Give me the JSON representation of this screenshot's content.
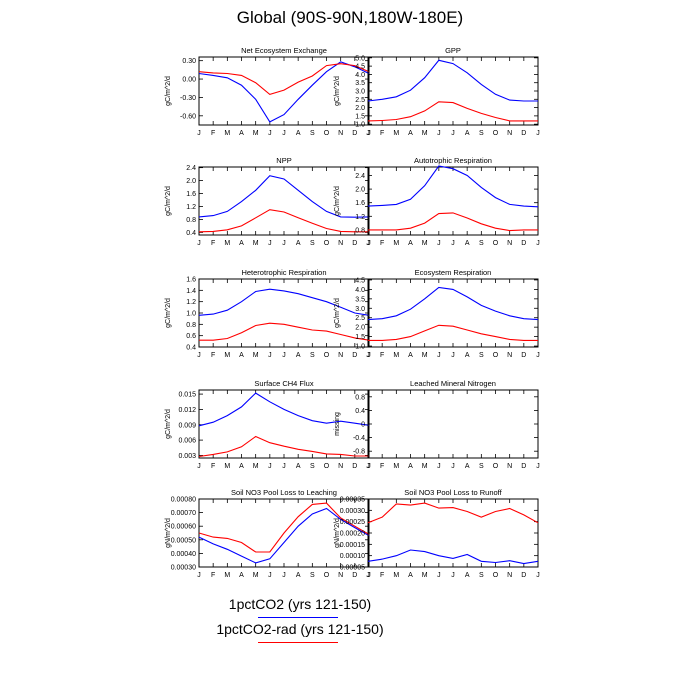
{
  "page_title": "Global (90S-90N,180W-180E)",
  "legend": {
    "items": [
      {
        "label": "1pctCO2 (yrs 121-150)",
        "color": "#0000ff"
      },
      {
        "label": "1pctCO2-rad (yrs 121-150)",
        "color": "#ff0000"
      }
    ]
  },
  "chart_data": [
    {
      "type": "line",
      "title": "Net Ecosystem Exchange",
      "ylabel": "gC/m^2/d",
      "categories": [
        "J",
        "F",
        "M",
        "A",
        "M",
        "J",
        "J",
        "A",
        "S",
        "O",
        "N",
        "D",
        "J"
      ],
      "ylim": [
        -0.75,
        0.36
      ],
      "yticks": [
        0.3,
        0.0,
        -0.3,
        -0.6
      ],
      "ytick_labels": [
        "0.30",
        "0.00",
        "-0.30",
        "-0.60"
      ],
      "series": [
        {
          "color": "#0000ff",
          "values": [
            0.09,
            0.06,
            0.02,
            -0.1,
            -0.33,
            -0.7,
            -0.58,
            -0.33,
            -0.1,
            0.12,
            0.28,
            0.2,
            0.09
          ]
        },
        {
          "color": "#ff0000",
          "values": [
            0.12,
            0.1,
            0.09,
            0.06,
            -0.06,
            -0.25,
            -0.18,
            -0.05,
            0.05,
            0.22,
            0.25,
            0.22,
            0.12
          ]
        }
      ]
    },
    {
      "type": "line",
      "title": "GPP",
      "ylabel": "gC/m^2/d",
      "categories": [
        "J",
        "F",
        "M",
        "A",
        "M",
        "J",
        "J",
        "A",
        "S",
        "O",
        "N",
        "D",
        "J"
      ],
      "ylim": [
        0.95,
        5.05
      ],
      "yticks": [
        1.0,
        1.5,
        2.0,
        2.5,
        3.0,
        3.5,
        4.0,
        4.5,
        5.0
      ],
      "ytick_labels": [
        "1.0",
        "1.5",
        "2.0",
        "2.5",
        "3.0",
        "3.5",
        "4.0",
        "4.5",
        "5.0"
      ],
      "series": [
        {
          "color": "#0000ff",
          "values": [
            2.4,
            2.5,
            2.65,
            3.05,
            3.8,
            4.85,
            4.65,
            4.1,
            3.4,
            2.8,
            2.45,
            2.4,
            2.4
          ]
        },
        {
          "color": "#ff0000",
          "values": [
            1.2,
            1.22,
            1.28,
            1.45,
            1.8,
            2.35,
            2.3,
            1.95,
            1.65,
            1.4,
            1.2,
            1.2,
            1.2
          ]
        }
      ]
    },
    {
      "type": "line",
      "title": "NPP",
      "ylabel": "gC/m^2/d",
      "categories": [
        "J",
        "F",
        "M",
        "A",
        "M",
        "J",
        "J",
        "A",
        "S",
        "O",
        "N",
        "D",
        "J"
      ],
      "ylim": [
        0.32,
        2.42
      ],
      "yticks": [
        0.4,
        0.8,
        1.2,
        1.6,
        2.0,
        2.4
      ],
      "ytick_labels": [
        "0.4",
        "0.8",
        "1.2",
        "1.6",
        "2.0",
        "2.4"
      ],
      "series": [
        {
          "color": "#0000ff",
          "values": [
            0.88,
            0.92,
            1.05,
            1.35,
            1.7,
            2.15,
            2.05,
            1.7,
            1.35,
            1.05,
            0.88,
            0.87,
            0.88
          ]
        },
        {
          "color": "#ff0000",
          "values": [
            0.42,
            0.43,
            0.48,
            0.6,
            0.85,
            1.1,
            1.03,
            0.85,
            0.68,
            0.52,
            0.43,
            0.42,
            0.42
          ]
        }
      ]
    },
    {
      "type": "line",
      "title": "Autotrophic Respiration",
      "ylabel": "gC/m^2/d",
      "categories": [
        "J",
        "F",
        "M",
        "A",
        "M",
        "J",
        "J",
        "A",
        "S",
        "O",
        "N",
        "D",
        "J"
      ],
      "ylim": [
        0.65,
        2.65
      ],
      "yticks": [
        0.8,
        1.2,
        1.6,
        2.0,
        2.4
      ],
      "ytick_labels": [
        "0.8",
        "1.2",
        "1.6",
        "2.0",
        "2.4"
      ],
      "series": [
        {
          "color": "#0000ff",
          "values": [
            1.5,
            1.52,
            1.55,
            1.7,
            2.1,
            2.68,
            2.6,
            2.4,
            2.05,
            1.75,
            1.55,
            1.5,
            1.48
          ]
        },
        {
          "color": "#ff0000",
          "values": [
            0.8,
            0.8,
            0.8,
            0.85,
            1.0,
            1.28,
            1.3,
            1.15,
            0.98,
            0.85,
            0.78,
            0.8,
            0.8
          ]
        }
      ]
    },
    {
      "type": "line",
      "title": "Heterotrophic Respiration",
      "ylabel": "gC/m^2/d",
      "categories": [
        "J",
        "F",
        "M",
        "A",
        "M",
        "J",
        "J",
        "A",
        "S",
        "O",
        "N",
        "D",
        "J"
      ],
      "ylim": [
        0.4,
        1.6
      ],
      "yticks": [
        0.4,
        0.6,
        0.8,
        1.0,
        1.2,
        1.4,
        1.6
      ],
      "ytick_labels": [
        "0.4",
        "0.6",
        "0.8",
        "1.0",
        "1.2",
        "1.4",
        "1.6"
      ],
      "series": [
        {
          "color": "#0000ff",
          "values": [
            0.96,
            0.98,
            1.05,
            1.2,
            1.38,
            1.42,
            1.39,
            1.34,
            1.27,
            1.2,
            1.1,
            1.0,
            0.96
          ]
        },
        {
          "color": "#ff0000",
          "values": [
            0.52,
            0.52,
            0.55,
            0.65,
            0.78,
            0.82,
            0.8,
            0.75,
            0.7,
            0.68,
            0.62,
            0.56,
            0.52
          ]
        }
      ]
    },
    {
      "type": "line",
      "title": "Ecosystem Respiration",
      "ylabel": "gC/m^2/d",
      "categories": [
        "J",
        "F",
        "M",
        "A",
        "M",
        "J",
        "J",
        "A",
        "S",
        "O",
        "N",
        "D",
        "J"
      ],
      "ylim": [
        0.95,
        4.55
      ],
      "yticks": [
        1.0,
        1.5,
        2.0,
        2.5,
        3.0,
        3.5,
        4.0,
        4.5
      ],
      "ytick_labels": [
        "1.0",
        "1.5",
        "2.0",
        "2.5",
        "3.0",
        "3.5",
        "4.0",
        "4.5"
      ],
      "series": [
        {
          "color": "#0000ff",
          "values": [
            2.4,
            2.45,
            2.6,
            2.95,
            3.5,
            4.1,
            4.0,
            3.6,
            3.15,
            2.85,
            2.6,
            2.45,
            2.4
          ]
        },
        {
          "color": "#ff0000",
          "values": [
            1.3,
            1.3,
            1.35,
            1.5,
            1.8,
            2.1,
            2.05,
            1.85,
            1.65,
            1.5,
            1.35,
            1.3,
            1.3
          ]
        }
      ]
    },
    {
      "type": "line",
      "title": "Surface CH4 Flux",
      "ylabel": "gC/m^2/d",
      "categories": [
        "J",
        "F",
        "M",
        "A",
        "M",
        "J",
        "J",
        "A",
        "S",
        "O",
        "N",
        "D",
        "J"
      ],
      "ylim": [
        0.0025,
        0.0158
      ],
      "yticks": [
        0.003,
        0.006,
        0.009,
        0.012,
        0.015
      ],
      "ytick_labels": [
        "0.003",
        "0.006",
        "0.009",
        "0.012",
        "0.015"
      ],
      "series": [
        {
          "color": "#0000ff",
          "values": [
            0.0088,
            0.0095,
            0.0108,
            0.0125,
            0.0152,
            0.0135,
            0.012,
            0.0108,
            0.0098,
            0.0093,
            0.0097,
            0.0093,
            0.0089
          ]
        },
        {
          "color": "#ff0000",
          "values": [
            0.0028,
            0.0032,
            0.0037,
            0.0047,
            0.0067,
            0.0055,
            0.0048,
            0.0042,
            0.0038,
            0.0033,
            0.0032,
            0.0029,
            0.0029
          ]
        }
      ]
    },
    {
      "type": "line",
      "title": "Leached Mineral Nitrogen",
      "ylabel": "missing",
      "categories": [
        "J",
        "F",
        "M",
        "A",
        "M",
        "J",
        "J",
        "A",
        "S",
        "O",
        "N",
        "D",
        "J"
      ],
      "ylim": [
        -1.0,
        1.0
      ],
      "yticks": [
        0.8,
        0.4,
        0.0,
        -0.4,
        -0.8
      ],
      "ytick_labels": [
        "0.8",
        "0.4",
        "0",
        "-0.4",
        "-0.8"
      ],
      "series": []
    },
    {
      "type": "line",
      "title": "Soil NO3 Pool Loss to Leaching",
      "ylabel": "gN/m^2/d",
      "categories": [
        "J",
        "F",
        "M",
        "A",
        "M",
        "J",
        "J",
        "A",
        "S",
        "O",
        "N",
        "D",
        "J"
      ],
      "ylim": [
        0.0003,
        0.0008
      ],
      "yticks": [
        0.0003,
        0.0004,
        0.0005,
        0.0006,
        0.0007,
        0.0008
      ],
      "ytick_labels": [
        "0.00030",
        "0.00040",
        "0.00050",
        "0.00060",
        "0.00070",
        "0.00080"
      ],
      "series": [
        {
          "color": "#0000ff",
          "values": [
            0.00052,
            0.00047,
            0.00043,
            0.00038,
            0.00033,
            0.00036,
            0.00048,
            0.0006,
            0.00069,
            0.00073,
            0.00065,
            0.00059,
            0.00053
          ]
        },
        {
          "color": "#ff0000",
          "values": [
            0.00055,
            0.00052,
            0.00051,
            0.00048,
            0.00041,
            0.00041,
            0.00055,
            0.00067,
            0.00076,
            0.00077,
            0.00066,
            0.0006,
            0.00054
          ]
        }
      ]
    },
    {
      "type": "line",
      "title": "Soil NO3 Pool Loss to Runoff",
      "ylabel": "gN/m^2/d",
      "categories": [
        "J",
        "F",
        "M",
        "A",
        "M",
        "J",
        "J",
        "A",
        "S",
        "O",
        "N",
        "D",
        "J"
      ],
      "ylim": [
        5e-05,
        0.00035
      ],
      "yticks": [
        5e-05,
        0.0001,
        0.00015,
        0.0002,
        0.00025,
        0.0003,
        0.00035
      ],
      "ytick_labels": [
        "0.00005",
        "0.00010",
        "0.00015",
        "0.00020",
        "0.00025",
        "0.00030",
        "0.00035"
      ],
      "series": [
        {
          "color": "#0000ff",
          "values": [
            7.5e-05,
            8.5e-05,
            0.0001,
            0.000125,
            0.000118,
            0.0001,
            8.8e-05,
            0.000105,
            7.5e-05,
            7e-05,
            7.8e-05,
            6.5e-05,
            7.5e-05
          ]
        },
        {
          "color": "#ff0000",
          "values": [
            0.000245,
            0.00027,
            0.000328,
            0.000323,
            0.000332,
            0.00031,
            0.000312,
            0.000295,
            0.00027,
            0.000295,
            0.000308,
            0.00028,
            0.000245
          ]
        }
      ]
    }
  ]
}
